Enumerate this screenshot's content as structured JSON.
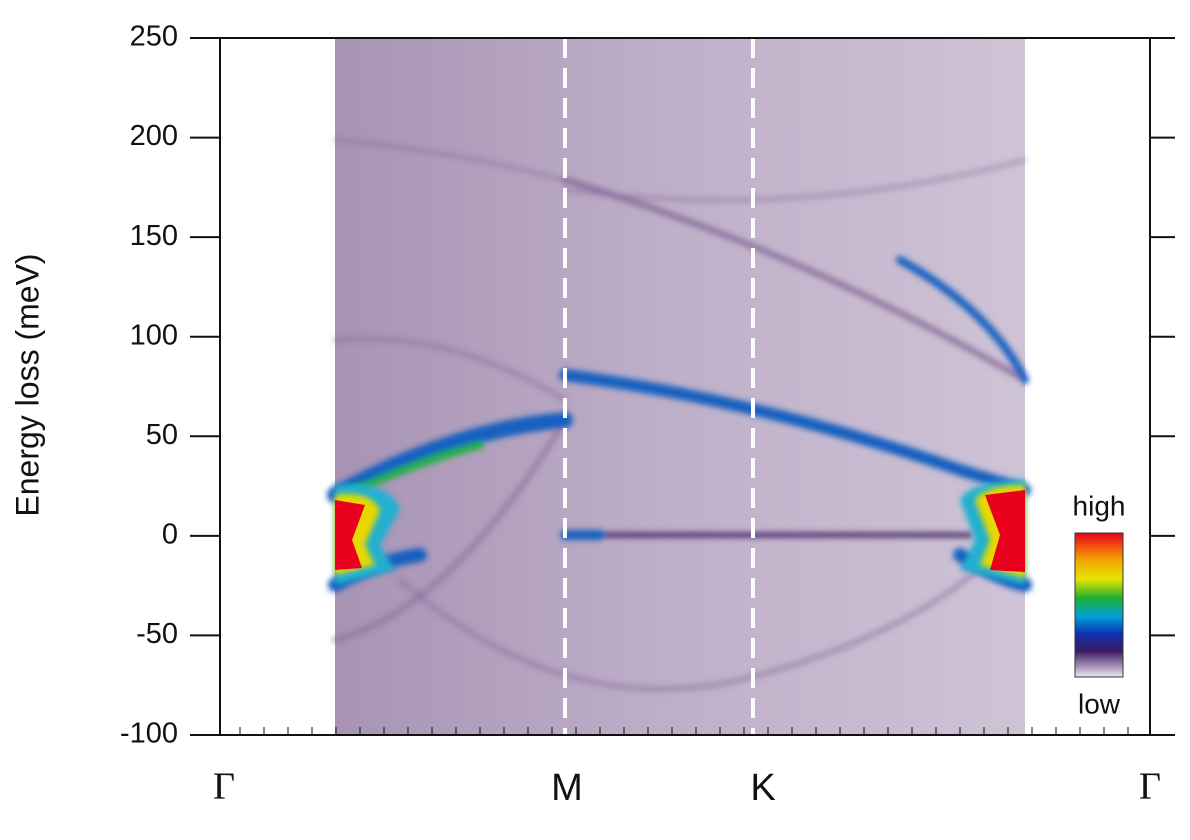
{
  "chart_data": {
    "type": "heatmap",
    "ylabel": "Energy loss (meV)",
    "ylim": [
      -100,
      250
    ],
    "yticks": [
      -100,
      -50,
      0,
      50,
      100,
      150,
      200,
      250
    ],
    "categories": [
      "Γ",
      "M",
      "K",
      "Γ"
    ],
    "colorbar_high_label": "high",
    "colorbar_low_label": "low"
  }
}
